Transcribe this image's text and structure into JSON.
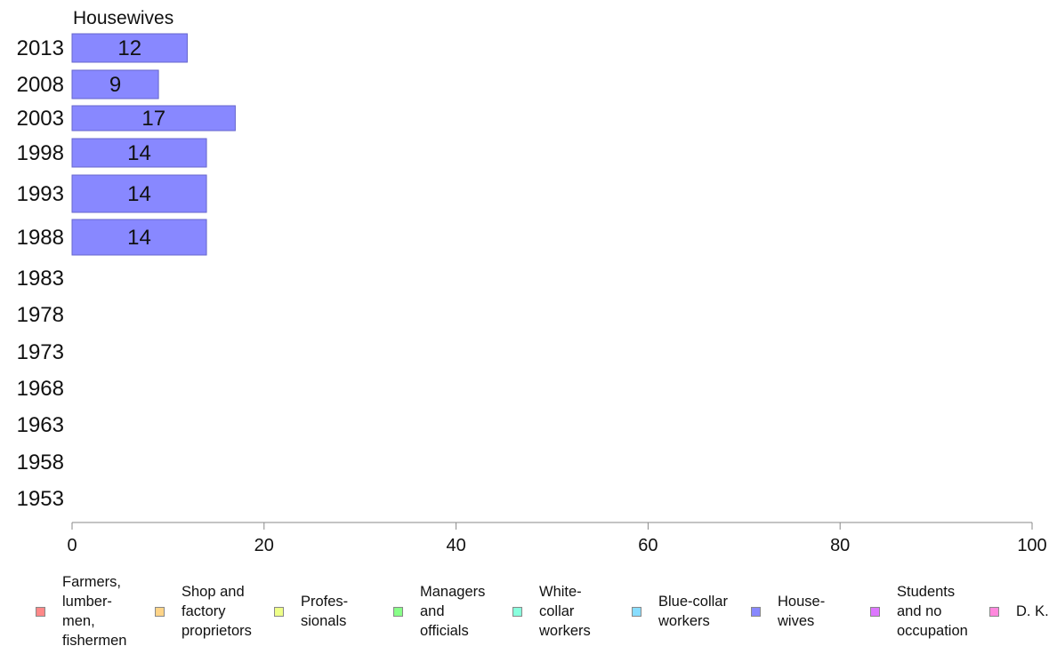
{
  "chart_data": {
    "type": "bar",
    "title": "Housewives",
    "orientation": "horizontal",
    "categories": [
      "2013",
      "2008",
      "2003",
      "1998",
      "1993",
      "1988",
      "1983",
      "1978",
      "1973",
      "1968",
      "1963",
      "1958",
      "1953"
    ],
    "values": [
      12,
      9,
      17,
      14,
      14,
      14,
      null,
      null,
      null,
      null,
      null,
      null,
      null
    ],
    "xlim": [
      0,
      100
    ],
    "xticks": [
      "0",
      "20",
      "40",
      "60",
      "80",
      "100"
    ],
    "bar_color": "#8888ff",
    "grid": false,
    "legend": {
      "placement": "bottom",
      "entries": [
        {
          "label": "Farmers,\nlumber-\nmen,\nfishermen",
          "color": "#ff8888"
        },
        {
          "label": "Shop and\nfactory\nproprietors",
          "color": "#ffd488"
        },
        {
          "label": "Profes-\nsionals",
          "color": "#eeff88"
        },
        {
          "label": "Managers\nand\nofficials",
          "color": "#88ff88"
        },
        {
          "label": "White-\ncollar\nworkers",
          "color": "#88ffdd"
        },
        {
          "label": "Blue-collar\nworkers",
          "color": "#88ddff"
        },
        {
          "label": "House-\nwives",
          "color": "#8888ff"
        },
        {
          "label": "Students\nand no\noccupation",
          "color": "#dd77ff"
        },
        {
          "label": "D. K.",
          "color": "#ff88dd"
        }
      ]
    }
  }
}
